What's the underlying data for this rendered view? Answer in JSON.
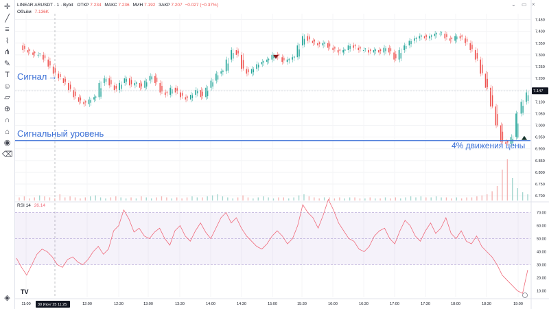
{
  "header": {
    "symbol": "LINEAR:ARUSDT · 1 · Bybit",
    "open_label": "ОТКР",
    "open": "7.234",
    "high_label": "МАКС",
    "high": "7.236",
    "low_label": "МИН",
    "low": "7.192",
    "close_label": "ЗАКР",
    "close": "7.207",
    "change": "−0.027 (−0.37%)",
    "volume_label": "Объём",
    "volume": "7.136K"
  },
  "rsi_header": {
    "label": "RSI 14",
    "value": "26.14"
  },
  "annotations": {
    "signal": "Сигнал",
    "signal_level": "Сигнальный уровень",
    "move": "4% движения цены"
  },
  "price_badge": "7.147",
  "date_badge": "30 Июн '25",
  "time_badge": "11:25",
  "colors": {
    "up": "#26a69a",
    "down": "#ef5350",
    "accent": "#3a6fd6",
    "rsi": "#f06a7a",
    "band": "#7e57c2"
  },
  "icons": [
    "crosshair-icon",
    "trend-line-icon",
    "horizontal-line-icon",
    "fib-icon",
    "pitchfork-icon",
    "brush-icon",
    "text-icon",
    "emoji-icon",
    "ruler-icon",
    "zoom-icon",
    "magnet-icon",
    "lock-icon",
    "eye-icon",
    "trash-icon",
    "layers-icon"
  ],
  "chart_data": [
    {
      "type": "line",
      "name": "price",
      "x_ticks": [
        "11:00",
        "12:00",
        "12:30",
        "13:00",
        "13:30",
        "14:00",
        "14:30",
        "15:00",
        "15:30",
        "16:00",
        "16:30",
        "17:00",
        "17:30",
        "18:00",
        "18:30",
        "19:00"
      ],
      "y_ticks": [
        7.45,
        7.4,
        7.35,
        7.3,
        7.25,
        7.2,
        7.15,
        7.1,
        7.05,
        7.0,
        6.95,
        6.9,
        6.85,
        6.8,
        6.75,
        6.7
      ],
      "ylim": [
        6.68,
        7.475
      ],
      "signal_level": 6.935,
      "x": [
        0,
        5,
        10,
        15,
        20,
        25,
        30,
        35,
        40,
        45,
        50,
        55,
        60,
        65,
        70,
        75,
        80,
        85,
        90,
        95,
        100,
        105,
        110,
        115,
        120,
        125,
        130,
        135,
        140,
        145,
        150,
        155,
        160,
        165,
        170,
        175,
        180,
        185,
        190,
        195,
        200,
        205,
        210,
        215,
        220,
        225,
        230,
        235,
        240,
        245,
        250,
        255,
        260,
        265,
        270,
        275,
        280,
        285,
        290,
        295,
        300,
        305,
        310,
        315,
        320,
        325,
        330,
        335,
        340,
        345,
        350,
        355,
        360,
        365,
        370,
        375,
        380,
        385,
        390,
        395,
        400,
        405,
        410,
        415,
        420,
        425,
        430,
        435,
        440,
        445,
        450,
        455,
        460,
        465,
        470,
        475,
        480,
        485,
        490,
        495,
        500
      ],
      "values": [
        7.34,
        7.32,
        7.31,
        7.3,
        7.3,
        7.28,
        7.25,
        7.22,
        7.2,
        7.18,
        7.15,
        7.12,
        7.1,
        7.09,
        7.11,
        7.12,
        7.18,
        7.2,
        7.17,
        7.15,
        7.18,
        7.2,
        7.17,
        7.18,
        7.16,
        7.19,
        7.21,
        7.18,
        7.14,
        7.13,
        7.16,
        7.14,
        7.12,
        7.11,
        7.13,
        7.15,
        7.12,
        7.16,
        7.19,
        7.22,
        7.23,
        7.28,
        7.32,
        7.3,
        7.24,
        7.22,
        7.24,
        7.26,
        7.27,
        7.28,
        7.3,
        7.29,
        7.27,
        7.28,
        7.29,
        7.34,
        7.38,
        7.36,
        7.35,
        7.34,
        7.35,
        7.33,
        7.32,
        7.31,
        7.32,
        7.34,
        7.33,
        7.32,
        7.32,
        7.31,
        7.32,
        7.31,
        7.33,
        7.31,
        7.28,
        7.32,
        7.34,
        7.36,
        7.37,
        7.38,
        7.37,
        7.38,
        7.39,
        7.39,
        7.37,
        7.36,
        7.38,
        7.37,
        7.35,
        7.32,
        7.28,
        7.22,
        7.16,
        7.08,
        7.0,
        6.93,
        6.92,
        6.95,
        7.05,
        7.1,
        7.14
      ]
    },
    {
      "type": "line",
      "name": "RSI 14",
      "y_ticks": [
        70,
        60,
        50,
        40,
        30,
        20,
        10
      ],
      "ylim": [
        5,
        75
      ],
      "bands": [
        30,
        50,
        70
      ],
      "values": [
        35,
        28,
        22,
        30,
        38,
        42,
        40,
        36,
        30,
        28,
        34,
        36,
        32,
        30,
        34,
        40,
        44,
        38,
        42,
        56,
        60,
        72,
        65,
        55,
        58,
        52,
        50,
        55,
        58,
        50,
        45,
        56,
        60,
        52,
        48,
        56,
        62,
        55,
        50,
        58,
        66,
        70,
        62,
        66,
        58,
        52,
        48,
        44,
        42,
        46,
        52,
        56,
        52,
        46,
        50,
        60,
        76,
        70,
        66,
        58,
        68,
        80,
        72,
        62,
        56,
        50,
        48,
        42,
        40,
        44,
        52,
        56,
        58,
        50,
        46,
        56,
        64,
        60,
        52,
        48,
        56,
        62,
        54,
        58,
        66,
        54,
        50,
        56,
        48,
        46,
        52,
        44,
        40,
        36,
        30,
        22,
        18,
        14,
        10,
        8,
        26
      ]
    },
    {
      "type": "bar",
      "name": "volume",
      "values": [
        3,
        4,
        2,
        3,
        5,
        4,
        3,
        2,
        6,
        3,
        4,
        3,
        2,
        3,
        4,
        5,
        3,
        2,
        3,
        4,
        3,
        2,
        3,
        2,
        4,
        3,
        2,
        3,
        4,
        3,
        2,
        3,
        2,
        3,
        4,
        3,
        3,
        4,
        5,
        6,
        4,
        3,
        2,
        3,
        5,
        3,
        2,
        3,
        4,
        3,
        2,
        3,
        3,
        2,
        3,
        5,
        6,
        4,
        3,
        2,
        3,
        3,
        2,
        3,
        2,
        3,
        3,
        2,
        2,
        3,
        2,
        2,
        3,
        2,
        3,
        2,
        3,
        4,
        3,
        4,
        3,
        3,
        4,
        3,
        3,
        2,
        3,
        2,
        3,
        3,
        4,
        5,
        6,
        9,
        14,
        30,
        40,
        22,
        12,
        8,
        6
      ]
    }
  ]
}
